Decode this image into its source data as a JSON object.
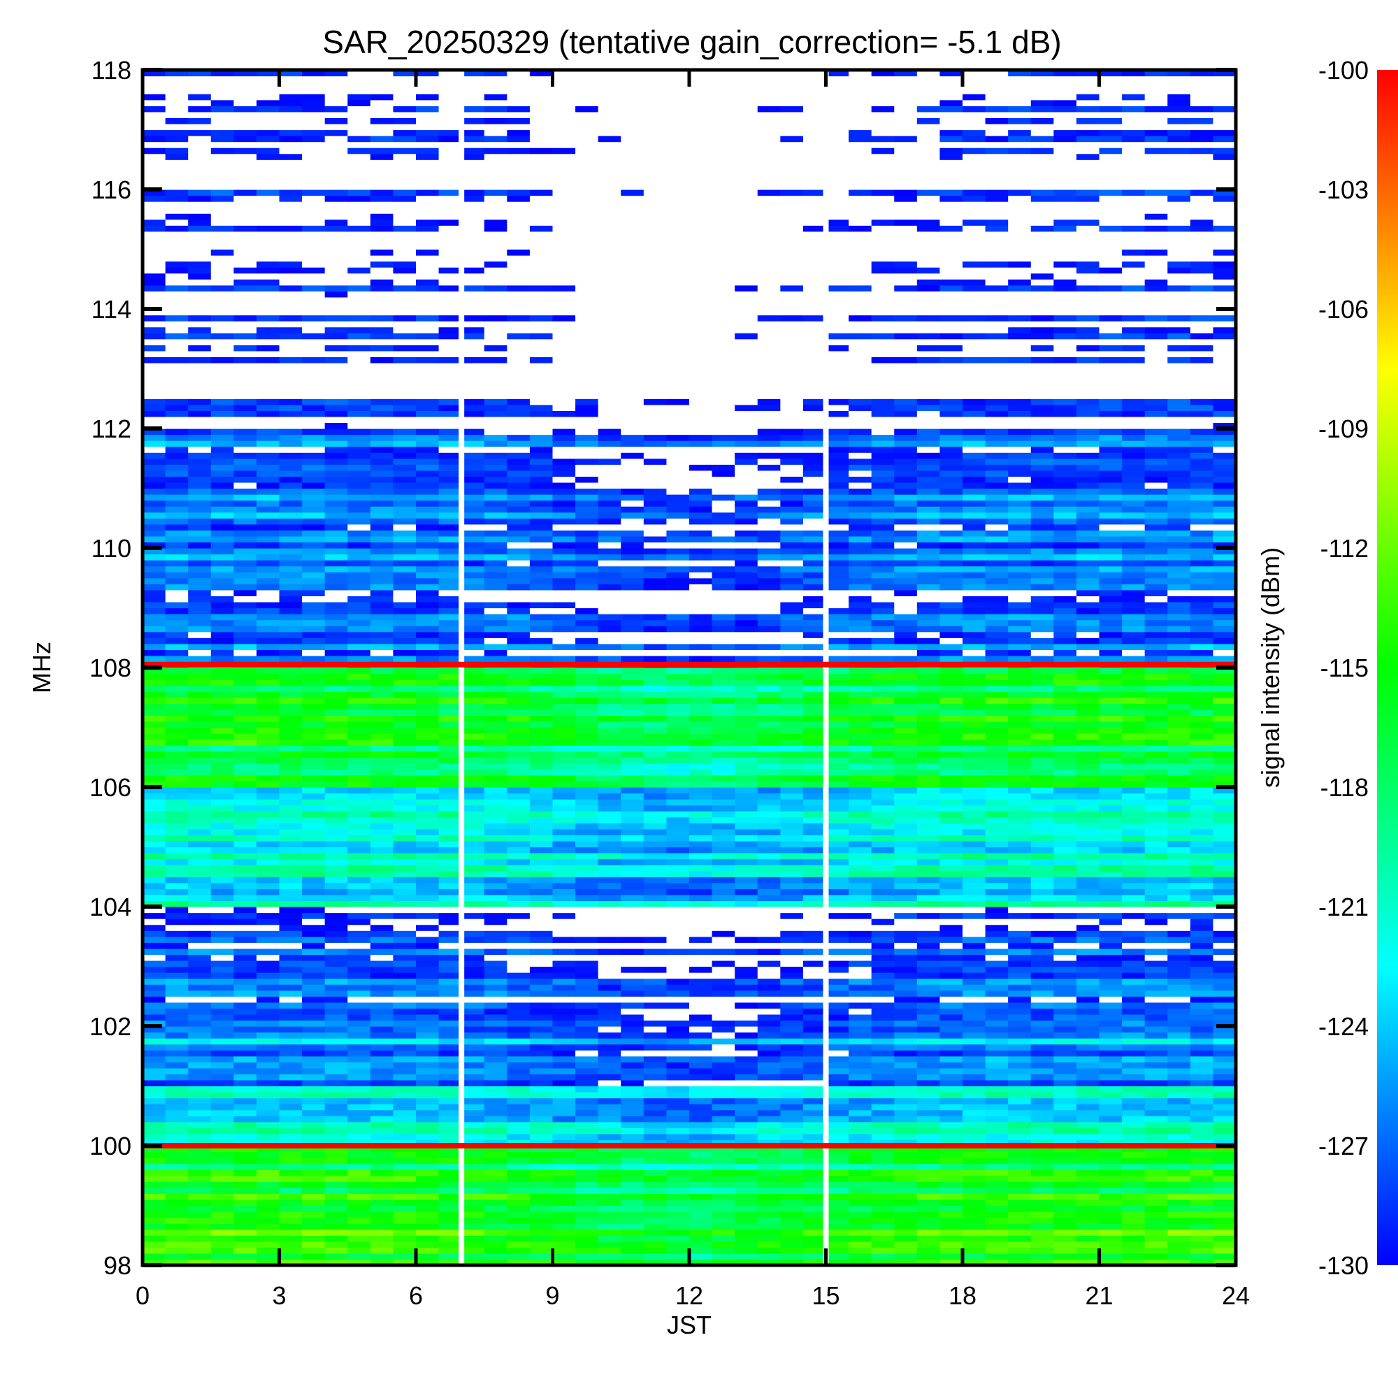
{
  "chart_data": {
    "type": "heatmap",
    "title": "SAR_20250329 (tentative gain_correction= -5.1 dB)",
    "xlabel": "JST",
    "ylabel": "MHz",
    "xlim": [
      0,
      24
    ],
    "ylim": [
      98,
      118
    ],
    "x_ticks": [
      "0",
      "3",
      "6",
      "9",
      "12",
      "15",
      "18",
      "21",
      "24"
    ],
    "y_ticks": [
      "98",
      "100",
      "102",
      "104",
      "106",
      "108",
      "110",
      "112",
      "114",
      "116",
      "118"
    ],
    "colorbar": {
      "label": "signal intensity (dBm)",
      "range": [
        -130,
        -100
      ],
      "ticks": [
        "-100",
        "-103",
        "-106",
        "-109",
        "-112",
        "-115",
        "-118",
        "-121",
        "-124",
        "-127",
        "-130"
      ],
      "colormap": [
        "#0000ff",
        "#00ffff",
        "#00ff00",
        "#ffff00",
        "#ff0000"
      ]
    },
    "data_gaps_jst": [
      7.0,
      15.0
    ],
    "strong_bands_mhz": [
      100.0,
      108.05
    ],
    "bands_dbm": [
      {
        "from_mhz": 98,
        "to_mhz": 99.2,
        "dbm": -114
      },
      {
        "from_mhz": 99.2,
        "to_mhz": 100,
        "dbm": -116
      },
      {
        "from_mhz": 100,
        "to_mhz": 101,
        "dbm": -122
      },
      {
        "from_mhz": 101,
        "to_mhz": 102,
        "dbm": -125
      },
      {
        "from_mhz": 102,
        "to_mhz": 103.5,
        "dbm": -128
      },
      {
        "from_mhz": 103.5,
        "to_mhz": 104,
        "dbm": -131
      },
      {
        "from_mhz": 104,
        "to_mhz": 106,
        "dbm": -122
      },
      {
        "from_mhz": 106,
        "to_mhz": 108,
        "dbm": -116
      },
      {
        "from_mhz": 108,
        "to_mhz": 112,
        "dbm": -127
      },
      {
        "from_mhz": 112,
        "to_mhz": 118,
        "dbm": -131
      }
    ]
  }
}
